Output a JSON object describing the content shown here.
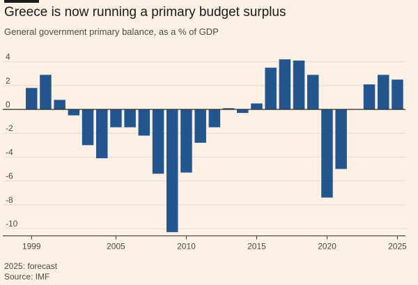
{
  "header": {
    "title": "Greece is now running a primary budget surplus",
    "subtitle": "General government primary balance, as a % of GDP"
  },
  "footer": {
    "note": "2025: forecast",
    "source": "Source: IMF"
  },
  "colors": {
    "background": "#fdf1e5",
    "bar": "#23568f",
    "grid": "#e6d9ce",
    "zero_line": "#2a2a2a",
    "text": "#4d4845",
    "title": "#1a1a1a"
  },
  "chart_data": {
    "type": "bar",
    "title": "Greece is now running a primary budget surplus",
    "subtitle": "General government primary balance, as a % of GDP",
    "xlabel": "",
    "ylabel": "",
    "ylim": [
      -10.5,
      4.5
    ],
    "yticks": [
      4,
      2,
      0,
      -2,
      -4,
      -6,
      -8,
      -10
    ],
    "xtick_labels": [
      "1999",
      "2005",
      "2010",
      "2015",
      "2020",
      "2025"
    ],
    "grid": true,
    "categories": [
      "1999",
      "2000",
      "2001",
      "2002",
      "2003",
      "2004",
      "2005",
      "2006",
      "2007",
      "2008",
      "2009",
      "2010",
      "2011",
      "2012",
      "2013",
      "2014",
      "2015",
      "2016",
      "2017",
      "2018",
      "2019",
      "2020",
      "2021",
      "2022",
      "2023",
      "2024",
      "2025"
    ],
    "values": [
      1.8,
      2.9,
      0.8,
      -0.5,
      -3.0,
      -4.1,
      -1.5,
      -1.5,
      -2.2,
      -5.4,
      -10.3,
      -5.3,
      -2.8,
      -1.5,
      0.1,
      -0.3,
      0.5,
      3.5,
      4.2,
      4.1,
      2.9,
      -7.4,
      -5.0,
      0.0,
      2.1,
      2.9,
      2.5
    ],
    "forecast": [
      "2025"
    ]
  }
}
